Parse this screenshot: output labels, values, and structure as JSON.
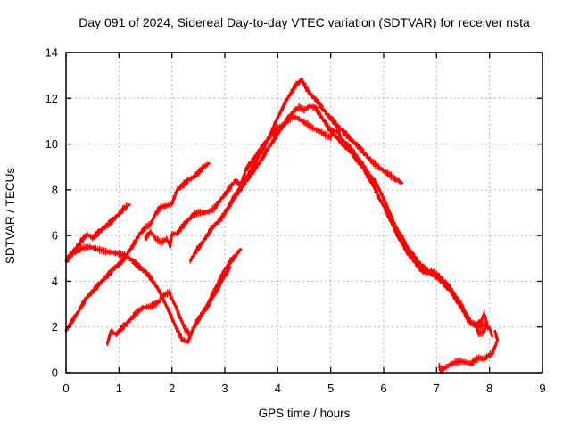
{
  "page": {
    "background": "#ffffff",
    "text_color": "#000000"
  },
  "chart_data": {
    "type": "scatter",
    "title": "Day 091 of 2024, Sidereal Day-to-day VTEC variation (SDTVAR) for receiver nsta",
    "xlabel": "GPS time / hours",
    "ylabel": "SDTVAR / TECUs",
    "xlim": [
      0,
      9
    ],
    "ylim": [
      0,
      14
    ],
    "xticks": [
      0,
      1,
      2,
      3,
      4,
      5,
      6,
      7,
      8,
      9
    ],
    "yticks": [
      0,
      2,
      4,
      6,
      8,
      10,
      12,
      14
    ],
    "grid": true,
    "grid_style": "dashed",
    "grid_color": "#b3b3b3",
    "legend_position": "none",
    "marker_style": "dense vertical error-bar ticks",
    "series_color": "#ff0000",
    "series": [
      {
        "points": [
          [
            0,
            4.9
          ],
          [
            0.1,
            5.2
          ],
          [
            0.2,
            5.5
          ],
          [
            0.3,
            5.8
          ],
          [
            0.4,
            6.05
          ],
          [
            0.5,
            5.9
          ],
          [
            0.6,
            6.1
          ],
          [
            0.7,
            6.3
          ],
          [
            0.8,
            6.5
          ],
          [
            0.9,
            6.7
          ],
          [
            1.0,
            6.95
          ],
          [
            1.1,
            7.2
          ],
          [
            1.2,
            7.35
          ]
        ]
      },
      {
        "points": [
          [
            0.05,
            5.0
          ],
          [
            0.15,
            5.25
          ],
          [
            0.3,
            5.45
          ],
          [
            0.45,
            5.5
          ],
          [
            0.6,
            5.4
          ],
          [
            0.75,
            5.3
          ],
          [
            0.9,
            5.25
          ],
          [
            1.0,
            5.2
          ],
          [
            1.1,
            5.15
          ],
          [
            1.2,
            5.0
          ],
          [
            1.3,
            4.8
          ],
          [
            1.4,
            4.6
          ],
          [
            1.5,
            4.4
          ],
          [
            1.6,
            4.15
          ],
          [
            1.7,
            3.8
          ],
          [
            1.8,
            3.4
          ],
          [
            1.9,
            2.9
          ],
          [
            2.0,
            2.4
          ],
          [
            2.1,
            1.85
          ],
          [
            2.2,
            1.45
          ],
          [
            2.3,
            1.35
          ],
          [
            2.4,
            1.9
          ],
          [
            2.5,
            2.3
          ],
          [
            2.6,
            2.7
          ],
          [
            2.7,
            3.1
          ],
          [
            2.8,
            3.6
          ],
          [
            2.9,
            4.05
          ],
          [
            3.0,
            4.5
          ],
          [
            3.1,
            4.85
          ],
          [
            3.2,
            5.1
          ],
          [
            3.3,
            5.4
          ]
        ]
      },
      {
        "points": [
          [
            0,
            1.85
          ],
          [
            0.1,
            2.2
          ],
          [
            0.2,
            2.55
          ],
          [
            0.3,
            2.95
          ],
          [
            0.4,
            3.3
          ],
          [
            0.5,
            3.55
          ],
          [
            0.6,
            3.8
          ],
          [
            0.7,
            4.05
          ],
          [
            0.8,
            4.3
          ],
          [
            0.9,
            4.55
          ],
          [
            1.0,
            4.75
          ],
          [
            1.1,
            5.0
          ],
          [
            1.2,
            5.35
          ],
          [
            1.3,
            5.7
          ],
          [
            1.4,
            6.1
          ],
          [
            1.5,
            6.35
          ],
          [
            1.6,
            6.5
          ],
          [
            1.7,
            7.0
          ],
          [
            1.8,
            7.25
          ],
          [
            1.9,
            7.3
          ],
          [
            2.0,
            7.4
          ],
          [
            2.1,
            8.0
          ],
          [
            2.2,
            8.2
          ],
          [
            2.3,
            8.4
          ],
          [
            2.4,
            8.55
          ],
          [
            2.5,
            8.75
          ],
          [
            2.6,
            9.0
          ],
          [
            2.7,
            9.15
          ]
        ]
      },
      {
        "points": [
          [
            0.78,
            1.3
          ],
          [
            0.85,
            1.8
          ],
          [
            0.95,
            1.68
          ],
          [
            1.05,
            1.95
          ],
          [
            1.15,
            2.15
          ],
          [
            1.3,
            2.55
          ],
          [
            1.45,
            2.85
          ],
          [
            1.6,
            2.9
          ],
          [
            1.75,
            3.1
          ],
          [
            1.85,
            3.4
          ],
          [
            1.95,
            3.5
          ],
          [
            2.05,
            3.0
          ],
          [
            2.15,
            2.45
          ],
          [
            2.25,
            1.9
          ],
          [
            2.35,
            1.65
          ],
          [
            2.45,
            2.15
          ],
          [
            2.55,
            2.5
          ],
          [
            2.7,
            3.0
          ],
          [
            2.85,
            3.6
          ],
          [
            3.0,
            4.25
          ],
          [
            3.1,
            4.6
          ]
        ]
      },
      {
        "points": [
          [
            1.5,
            5.9
          ],
          [
            1.6,
            6.15
          ],
          [
            1.7,
            5.85
          ],
          [
            1.8,
            5.7
          ],
          [
            1.9,
            5.85
          ],
          [
            1.97,
            5.55
          ],
          [
            2.0,
            6.05
          ],
          [
            2.1,
            6.1
          ],
          [
            2.2,
            6.4
          ],
          [
            2.3,
            6.65
          ],
          [
            2.4,
            6.9
          ],
          [
            2.5,
            7.0
          ],
          [
            2.6,
            7.0
          ],
          [
            2.7,
            7.05
          ],
          [
            2.8,
            7.2
          ],
          [
            2.9,
            7.5
          ],
          [
            3.0,
            7.8
          ],
          [
            3.1,
            8.1
          ],
          [
            3.2,
            8.4
          ],
          [
            3.3,
            8.2
          ],
          [
            3.4,
            8.9
          ],
          [
            3.5,
            9.2
          ],
          [
            3.6,
            9.55
          ],
          [
            3.7,
            9.85
          ],
          [
            3.8,
            10.15
          ],
          [
            3.9,
            10.45
          ],
          [
            4.0,
            10.7
          ],
          [
            4.1,
            10.85
          ],
          [
            4.2,
            11.05
          ],
          [
            4.3,
            11.2
          ],
          [
            4.4,
            11.1
          ],
          [
            4.5,
            10.95
          ],
          [
            4.6,
            10.8
          ],
          [
            4.7,
            10.65
          ],
          [
            4.8,
            10.55
          ],
          [
            4.9,
            10.4
          ],
          [
            5.0,
            10.3
          ],
          [
            5.05,
            10.6
          ],
          [
            5.15,
            10.55
          ],
          [
            5.2,
            10.2
          ],
          [
            5.3,
            10.0
          ],
          [
            5.45,
            9.6
          ],
          [
            5.6,
            9.1
          ],
          [
            5.75,
            8.6
          ],
          [
            5.9,
            8.1
          ],
          [
            6.0,
            7.6
          ],
          [
            6.1,
            7.1
          ],
          [
            6.2,
            6.5
          ],
          [
            6.35,
            5.9
          ],
          [
            6.5,
            5.3
          ],
          [
            6.65,
            4.85
          ],
          [
            6.8,
            4.5
          ],
          [
            6.95,
            4.25
          ],
          [
            7.1,
            4.0
          ],
          [
            7.25,
            3.6
          ],
          [
            7.4,
            3.1
          ],
          [
            7.5,
            2.7
          ],
          [
            7.6,
            2.3
          ],
          [
            7.7,
            2.1
          ],
          [
            7.8,
            2.0
          ],
          [
            7.9,
            2.1
          ],
          [
            8.0,
            1.95
          ],
          [
            8.05,
            1.6
          ]
        ]
      },
      {
        "points": [
          [
            2.35,
            4.9
          ],
          [
            2.45,
            5.3
          ],
          [
            2.55,
            5.6
          ],
          [
            2.65,
            5.95
          ],
          [
            2.75,
            6.3
          ],
          [
            2.85,
            6.55
          ],
          [
            2.95,
            6.8
          ],
          [
            3.05,
            7.15
          ],
          [
            3.15,
            7.6
          ],
          [
            3.25,
            7.95
          ],
          [
            3.35,
            8.3
          ],
          [
            3.45,
            8.7
          ],
          [
            3.55,
            9.1
          ],
          [
            3.65,
            9.5
          ],
          [
            3.75,
            9.9
          ],
          [
            3.85,
            10.4
          ],
          [
            3.95,
            10.9
          ],
          [
            4.05,
            11.4
          ],
          [
            4.15,
            11.85
          ],
          [
            4.25,
            12.25
          ],
          [
            4.35,
            12.6
          ],
          [
            4.45,
            12.8
          ],
          [
            4.55,
            12.4
          ],
          [
            4.65,
            12.1
          ],
          [
            4.75,
            11.85
          ],
          [
            4.85,
            11.55
          ],
          [
            4.95,
            11.25
          ],
          [
            5.05,
            11.0
          ],
          [
            5.15,
            10.75
          ],
          [
            5.3,
            10.4
          ],
          [
            5.45,
            10.05
          ],
          [
            5.6,
            9.7
          ],
          [
            5.75,
            9.3
          ],
          [
            5.9,
            9.0
          ],
          [
            6.05,
            8.75
          ],
          [
            6.2,
            8.5
          ],
          [
            6.35,
            8.3
          ]
        ]
      },
      {
        "points": [
          [
            3.0,
            7.0
          ],
          [
            3.1,
            7.35
          ],
          [
            3.2,
            7.7
          ],
          [
            3.3,
            8.05
          ],
          [
            3.4,
            8.35
          ],
          [
            3.5,
            8.7
          ],
          [
            3.6,
            9.0
          ],
          [
            3.7,
            9.35
          ],
          [
            3.8,
            9.75
          ],
          [
            3.9,
            10.1
          ],
          [
            4.0,
            10.45
          ],
          [
            4.1,
            10.8
          ],
          [
            4.2,
            11.15
          ],
          [
            4.3,
            11.45
          ],
          [
            4.4,
            11.6
          ],
          [
            4.5,
            11.5
          ],
          [
            4.6,
            11.65
          ],
          [
            4.7,
            11.6
          ],
          [
            4.75,
            11.45
          ],
          [
            4.85,
            11.1
          ],
          [
            4.95,
            10.75
          ],
          [
            5.05,
            10.45
          ],
          [
            5.15,
            10.2
          ],
          [
            5.3,
            9.85
          ],
          [
            5.45,
            9.45
          ],
          [
            5.6,
            9.0
          ],
          [
            5.7,
            8.6
          ],
          [
            5.8,
            8.2
          ],
          [
            5.9,
            7.7
          ],
          [
            6.0,
            7.3
          ],
          [
            6.1,
            6.8
          ],
          [
            6.2,
            6.3
          ],
          [
            6.3,
            5.85
          ],
          [
            6.4,
            5.45
          ],
          [
            6.5,
            5.1
          ],
          [
            6.6,
            4.8
          ],
          [
            6.7,
            4.55
          ],
          [
            6.8,
            4.35
          ],
          [
            6.9,
            4.45
          ],
          [
            7.0,
            4.3
          ],
          [
            7.1,
            4.1
          ],
          [
            7.2,
            3.85
          ],
          [
            7.3,
            3.55
          ],
          [
            7.4,
            3.2
          ],
          [
            7.5,
            2.85
          ],
          [
            7.55,
            2.6
          ],
          [
            7.6,
            2.4
          ],
          [
            7.65,
            2.2
          ],
          [
            7.75,
            2.1
          ],
          [
            7.85,
            2.3
          ],
          [
            7.9,
            2.55
          ],
          [
            7.95,
            2.2
          ],
          [
            7.9,
            1.8
          ],
          [
            7.8,
            1.7
          ],
          [
            7.75,
            1.95
          ]
        ]
      },
      {
        "points": [
          [
            7.05,
            0.25
          ],
          [
            7.1,
            0.1
          ],
          [
            7.15,
            0.2
          ],
          [
            7.25,
            0.35
          ],
          [
            7.35,
            0.45
          ],
          [
            7.45,
            0.5
          ],
          [
            7.55,
            0.45
          ],
          [
            7.65,
            0.4
          ],
          [
            7.7,
            0.5
          ],
          [
            7.8,
            0.65
          ],
          [
            7.9,
            0.6
          ],
          [
            7.95,
            0.7
          ],
          [
            8.05,
            0.85
          ],
          [
            8.1,
            1.1
          ],
          [
            8.15,
            1.45
          ],
          [
            8.1,
            1.8
          ]
        ]
      }
    ]
  }
}
